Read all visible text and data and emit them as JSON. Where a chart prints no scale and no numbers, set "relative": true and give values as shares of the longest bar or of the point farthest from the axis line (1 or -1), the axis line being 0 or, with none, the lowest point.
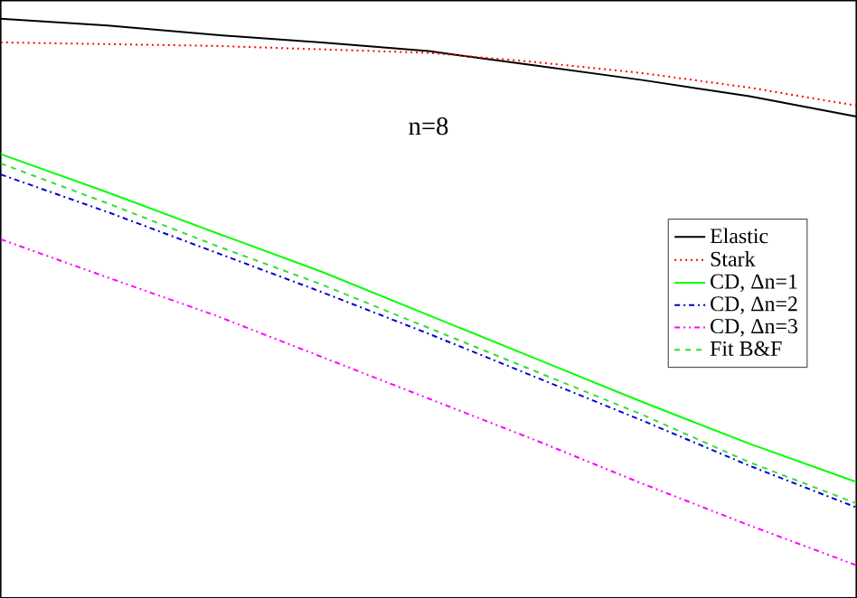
{
  "chart_data": {
    "type": "line",
    "relative": true,
    "legend": "right",
    "marker": "none",
    "annotations": [
      "n=8"
    ],
    "categories": [
      null,
      null,
      null,
      null,
      null,
      null,
      null,
      null,
      null
    ],
    "series": [
      {
        "name": "Elastic",
        "color": "#000000",
        "line_style": "solid",
        "values": [
          1.0,
          0.988,
          0.972,
          0.959,
          0.944,
          0.919,
          0.894,
          0.866,
          0.831
        ]
      },
      {
        "name": "Stark",
        "color": "#ff0000",
        "line_style": "dotted",
        "values": [
          0.959,
          0.956,
          0.953,
          0.947,
          0.941,
          0.925,
          0.906,
          0.881,
          0.85
        ]
      },
      {
        "name": "CD, Δn=1",
        "color": "#00ff00",
        "line_style": "solid",
        "values": [
          0.766,
          0.7,
          0.631,
          0.563,
          0.488,
          0.413,
          0.338,
          0.266,
          0.2
        ]
      },
      {
        "name": "CD, Δn=2",
        "color": "#0000cc",
        "line_style": "dashdot",
        "values": [
          0.731,
          0.666,
          0.597,
          0.528,
          0.456,
          0.381,
          0.306,
          0.228,
          0.156
        ]
      },
      {
        "name": "CD, Δn=3",
        "color": "#ff00ff",
        "line_style": "dashdotdot",
        "values": [
          0.619,
          0.553,
          0.488,
          0.416,
          0.344,
          0.272,
          0.197,
          0.125,
          0.056
        ]
      },
      {
        "name": "Fit B&F",
        "color": "#33dd33",
        "line_style": "dashed",
        "values": [
          0.75,
          0.681,
          0.609,
          0.541,
          0.466,
          0.391,
          0.316,
          0.234,
          0.163
        ]
      }
    ]
  }
}
